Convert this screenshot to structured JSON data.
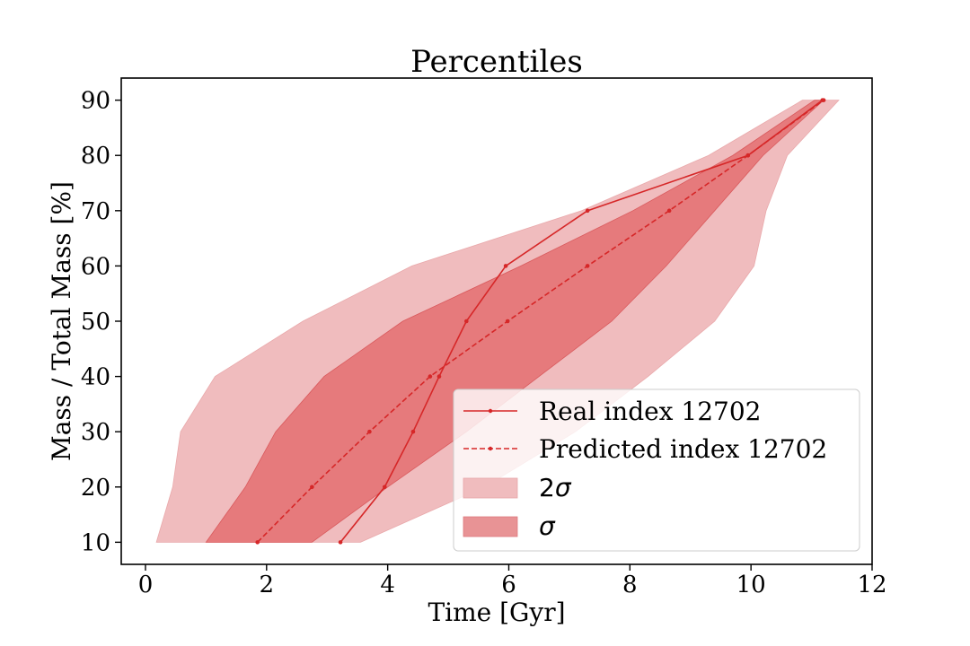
{
  "chart_data": {
    "type": "area",
    "title": "Percentiles",
    "xlabel": "Time [Gyr]",
    "ylabel": "Mass / Total Mass [%]",
    "xlim": [
      -0.4,
      12
    ],
    "ylim": [
      6,
      94
    ],
    "xticks": [
      0,
      2,
      4,
      6,
      8,
      10,
      12
    ],
    "yticks": [
      10,
      20,
      30,
      40,
      50,
      60,
      70,
      80,
      90
    ],
    "grid": false,
    "legend_position": "lower-right",
    "colors": {
      "line": "#d62728",
      "band_2sigma": "#f0bcbe",
      "band_sigma": "#e46f71",
      "legend_sigma": "#e89395",
      "axis": "#000000"
    },
    "series": [
      {
        "name": "Real index 12702",
        "style": "solid",
        "points": [
          [
            3.22,
            10
          ],
          [
            3.95,
            20
          ],
          [
            4.42,
            30
          ],
          [
            4.85,
            40
          ],
          [
            5.3,
            50
          ],
          [
            5.95,
            60
          ],
          [
            7.3,
            70
          ],
          [
            9.95,
            80
          ],
          [
            11.18,
            90
          ]
        ]
      },
      {
        "name": "Predicted index 12702",
        "style": "dashed",
        "points": [
          [
            1.85,
            10
          ],
          [
            2.75,
            20
          ],
          [
            3.7,
            30
          ],
          [
            4.7,
            40
          ],
          [
            5.98,
            50
          ],
          [
            7.3,
            60
          ],
          [
            8.65,
            70
          ],
          [
            9.95,
            80
          ],
          [
            11.2,
            90
          ]
        ]
      }
    ],
    "bands": [
      {
        "name": "2σ",
        "label_text": "2",
        "label_symbol": "σ",
        "lower": [
          [
            3.55,
            10
          ],
          [
            5.6,
            20
          ],
          [
            7.1,
            30
          ],
          [
            8.3,
            40
          ],
          [
            9.4,
            50
          ],
          [
            10.05,
            60
          ],
          [
            10.25,
            70
          ],
          [
            10.6,
            80
          ],
          [
            11.45,
            90
          ]
        ],
        "upper": [
          [
            0.18,
            10
          ],
          [
            0.45,
            20
          ],
          [
            0.58,
            30
          ],
          [
            1.15,
            40
          ],
          [
            2.6,
            50
          ],
          [
            4.4,
            60
          ],
          [
            7.2,
            70
          ],
          [
            9.3,
            80
          ],
          [
            10.85,
            90
          ]
        ]
      },
      {
        "name": "σ",
        "label_text": "",
        "label_symbol": "σ",
        "lower": [
          [
            2.75,
            10
          ],
          [
            4.0,
            20
          ],
          [
            5.3,
            30
          ],
          [
            6.5,
            40
          ],
          [
            7.7,
            50
          ],
          [
            8.6,
            60
          ],
          [
            9.4,
            70
          ],
          [
            10.2,
            80
          ],
          [
            11.2,
            90
          ]
        ],
        "upper": [
          [
            1.0,
            10
          ],
          [
            1.65,
            20
          ],
          [
            2.15,
            30
          ],
          [
            2.95,
            40
          ],
          [
            4.25,
            50
          ],
          [
            6.2,
            60
          ],
          [
            8.05,
            70
          ],
          [
            9.7,
            80
          ],
          [
            11.05,
            90
          ]
        ]
      }
    ]
  }
}
